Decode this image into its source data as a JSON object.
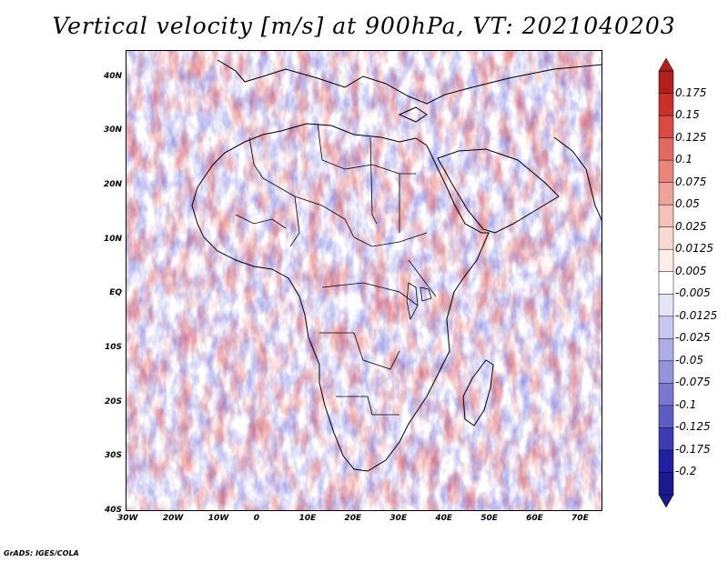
{
  "title": "Vertical velocity [m/s] at 900hPa, VT: 2021040203",
  "footer": "GrADS: IGES/COLA",
  "map": {
    "lat_labels": [
      "40N",
      "30N",
      "20N",
      "10N",
      "EQ",
      "10S",
      "20S",
      "30S",
      "40S"
    ],
    "lat_values": [
      40,
      30,
      20,
      10,
      0,
      -10,
      -20,
      -30,
      -40
    ],
    "lon_labels": [
      "30W",
      "20W",
      "10W",
      "0",
      "10E",
      "20E",
      "30E",
      "40E",
      "50E",
      "60E",
      "70E"
    ],
    "lon_values": [
      -30,
      -20,
      -10,
      0,
      10,
      20,
      30,
      40,
      50,
      60,
      70
    ],
    "lat_range": [
      -40,
      45
    ],
    "lon_range": [
      -30,
      75
    ]
  },
  "colorbar": {
    "labels": [
      "0.175",
      "0.15",
      "0.125",
      "0.1",
      "0.075",
      "0.05",
      "0.025",
      "0.0125",
      "0.005",
      "-0.005",
      "-0.0125",
      "-0.025",
      "-0.05",
      "-0.075",
      "-0.1",
      "-0.125",
      "-0.175",
      "-0.2"
    ],
    "colors": [
      "#b0201e",
      "#c8302a",
      "#d94a44",
      "#e06a62",
      "#e8857c",
      "#eea29a",
      "#f4c0b8",
      "#f8d8d2",
      "#fdeeea",
      "#ffffff",
      "#e4e4f6",
      "#c8c8ee",
      "#aeaee6",
      "#9494dc",
      "#7878d0",
      "#5c5cc4",
      "#3c3cb4",
      "#2020a0",
      "#1a1a8c"
    ]
  }
}
